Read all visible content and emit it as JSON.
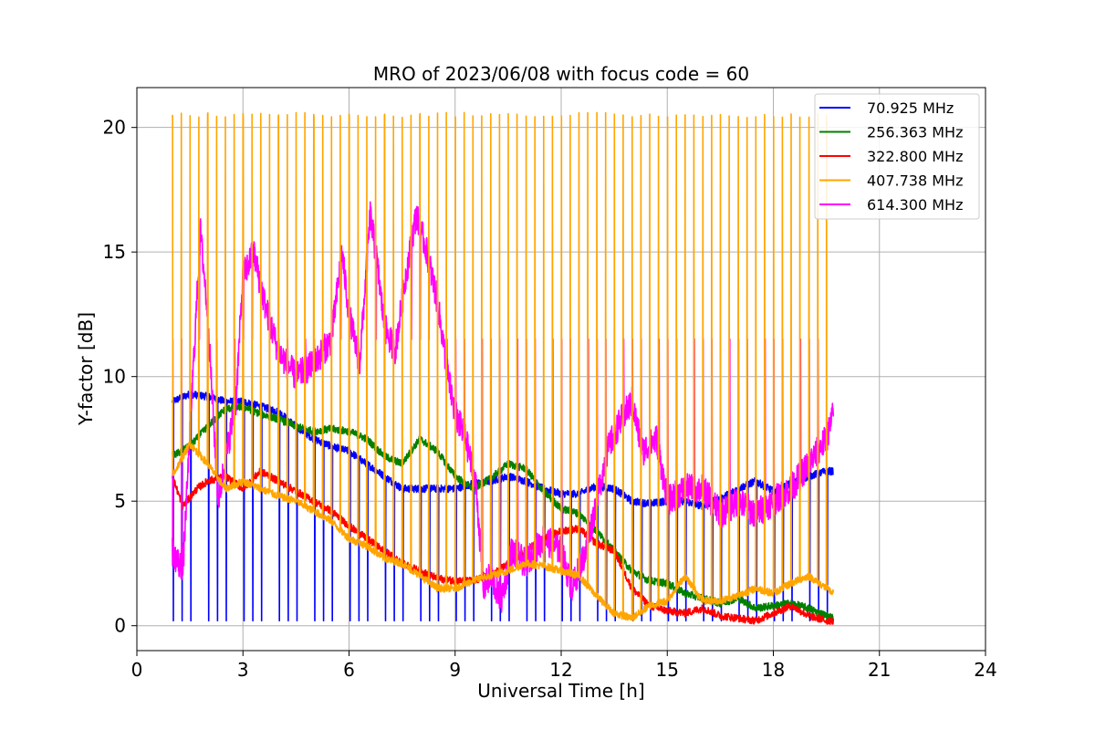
{
  "chart_data": {
    "type": "line",
    "title": "MRO of 2023/06/08 with focus code = 60",
    "xlabel": "Universal Time [h]",
    "ylabel": "Y-factor [dB]",
    "xlim": [
      0,
      24
    ],
    "ylim": [
      -1,
      21.6
    ],
    "x_ticks": [
      "0",
      "3",
      "6",
      "9",
      "12",
      "15",
      "18",
      "21",
      "24"
    ],
    "y_ticks": [
      "0",
      "5",
      "10",
      "15",
      "20"
    ],
    "grid": true,
    "legend_position": "top-right",
    "spike_period_h": 0.25,
    "series": [
      {
        "name": " 70.925 MHz",
        "color": "#0000ff",
        "points": [
          [
            1.0,
            9.0
          ],
          [
            1.5,
            9.3
          ],
          [
            2.0,
            9.2
          ],
          [
            2.5,
            9.0
          ],
          [
            3.0,
            9.0
          ],
          [
            3.5,
            8.8
          ],
          [
            4.0,
            8.6
          ],
          [
            4.5,
            8.0
          ],
          [
            5.0,
            7.5
          ],
          [
            5.5,
            7.2
          ],
          [
            6.0,
            7.0
          ],
          [
            6.5,
            6.5
          ],
          [
            7.0,
            6.0
          ],
          [
            7.5,
            5.5
          ],
          [
            8.0,
            5.5
          ],
          [
            8.5,
            5.5
          ],
          [
            9.0,
            5.5
          ],
          [
            9.5,
            5.7
          ],
          [
            10.0,
            5.8
          ],
          [
            10.5,
            6.0
          ],
          [
            11.0,
            5.8
          ],
          [
            11.5,
            5.5
          ],
          [
            12.0,
            5.3
          ],
          [
            12.5,
            5.3
          ],
          [
            13.0,
            5.6
          ],
          [
            13.5,
            5.5
          ],
          [
            14.0,
            5.0
          ],
          [
            14.5,
            4.9
          ],
          [
            15.0,
            5.0
          ],
          [
            15.5,
            5.0
          ],
          [
            16.0,
            4.8
          ],
          [
            16.5,
            5.1
          ],
          [
            17.0,
            5.5
          ],
          [
            17.5,
            5.8
          ],
          [
            18.0,
            5.4
          ],
          [
            18.5,
            5.7
          ],
          [
            19.0,
            6.0
          ],
          [
            19.5,
            6.2
          ],
          [
            19.7,
            6.2
          ]
        ],
        "spike_low": [
          1.0,
          0.2,
          19.7,
          0.1
        ],
        "spike_high_to_baseline": true
      },
      {
        "name": "256.363 MHz",
        "color": "#008000",
        "points": [
          [
            1.0,
            6.8
          ],
          [
            1.5,
            7.2
          ],
          [
            2.0,
            8.0
          ],
          [
            2.5,
            8.7
          ],
          [
            3.0,
            8.8
          ],
          [
            3.5,
            8.5
          ],
          [
            4.0,
            8.3
          ],
          [
            4.5,
            8.0
          ],
          [
            5.0,
            7.8
          ],
          [
            5.5,
            7.9
          ],
          [
            6.0,
            7.8
          ],
          [
            6.5,
            7.5
          ],
          [
            7.0,
            6.8
          ],
          [
            7.5,
            6.5
          ],
          [
            8.0,
            7.5
          ],
          [
            8.5,
            7.0
          ],
          [
            9.0,
            6.0
          ],
          [
            9.5,
            5.5
          ],
          [
            10.0,
            5.9
          ],
          [
            10.5,
            6.5
          ],
          [
            11.0,
            6.3
          ],
          [
            11.5,
            5.4
          ],
          [
            12.0,
            4.7
          ],
          [
            12.5,
            4.5
          ],
          [
            13.0,
            3.8
          ],
          [
            13.5,
            3.0
          ],
          [
            14.0,
            2.2
          ],
          [
            14.5,
            1.8
          ],
          [
            15.0,
            1.7
          ],
          [
            15.5,
            1.3
          ],
          [
            16.0,
            1.1
          ],
          [
            16.5,
            0.9
          ],
          [
            17.0,
            1.1
          ],
          [
            17.5,
            0.7
          ],
          [
            18.0,
            0.8
          ],
          [
            18.5,
            0.9
          ],
          [
            19.0,
            0.7
          ],
          [
            19.5,
            0.4
          ],
          [
            19.7,
            0.3
          ]
        ]
      },
      {
        "name": "322.800 MHz",
        "color": "#ff0000",
        "points": [
          [
            1.0,
            6.0
          ],
          [
            1.3,
            4.8
          ],
          [
            1.7,
            5.5
          ],
          [
            2.0,
            5.8
          ],
          [
            2.5,
            6.0
          ],
          [
            3.0,
            5.5
          ],
          [
            3.5,
            6.2
          ],
          [
            4.0,
            5.8
          ],
          [
            4.5,
            5.4
          ],
          [
            5.0,
            5.0
          ],
          [
            5.5,
            4.6
          ],
          [
            6.0,
            4.0
          ],
          [
            6.5,
            3.5
          ],
          [
            7.0,
            3.0
          ],
          [
            7.5,
            2.5
          ],
          [
            8.0,
            2.2
          ],
          [
            8.5,
            1.9
          ],
          [
            9.0,
            1.8
          ],
          [
            9.5,
            1.8
          ],
          [
            10.0,
            2.0
          ],
          [
            10.5,
            2.5
          ],
          [
            11.0,
            3.0
          ],
          [
            11.5,
            3.5
          ],
          [
            12.0,
            3.8
          ],
          [
            12.5,
            3.9
          ],
          [
            13.0,
            3.3
          ],
          [
            13.5,
            3.0
          ],
          [
            14.0,
            1.5
          ],
          [
            14.5,
            0.8
          ],
          [
            15.0,
            0.6
          ],
          [
            15.5,
            0.5
          ],
          [
            16.0,
            0.7
          ],
          [
            16.5,
            0.4
          ],
          [
            17.0,
            0.3
          ],
          [
            17.5,
            0.2
          ],
          [
            18.0,
            0.5
          ],
          [
            18.5,
            0.8
          ],
          [
            19.0,
            0.4
          ],
          [
            19.5,
            0.2
          ],
          [
            19.7,
            0.2
          ]
        ]
      },
      {
        "name": "407.738 MHz",
        "color": "#ffa500",
        "points": [
          [
            1.0,
            6.0
          ],
          [
            1.5,
            7.3
          ],
          [
            2.0,
            6.5
          ],
          [
            2.5,
            5.5
          ],
          [
            3.0,
            5.8
          ],
          [
            3.5,
            5.5
          ],
          [
            4.0,
            5.2
          ],
          [
            4.5,
            5.0
          ],
          [
            5.0,
            4.6
          ],
          [
            5.5,
            4.2
          ],
          [
            6.0,
            3.5
          ],
          [
            6.5,
            3.2
          ],
          [
            7.0,
            2.7
          ],
          [
            7.5,
            2.5
          ],
          [
            8.0,
            2.0
          ],
          [
            8.5,
            1.5
          ],
          [
            9.0,
            1.5
          ],
          [
            9.5,
            1.8
          ],
          [
            10.0,
            2.0
          ],
          [
            10.5,
            2.2
          ],
          [
            11.0,
            2.5
          ],
          [
            11.5,
            2.4
          ],
          [
            12.0,
            2.2
          ],
          [
            12.5,
            2.0
          ],
          [
            13.0,
            1.2
          ],
          [
            13.5,
            0.5
          ],
          [
            14.0,
            0.3
          ],
          [
            14.5,
            0.8
          ],
          [
            15.0,
            1.0
          ],
          [
            15.5,
            2.0
          ],
          [
            16.0,
            1.0
          ],
          [
            16.5,
            1.0
          ],
          [
            17.0,
            1.2
          ],
          [
            17.5,
            1.5
          ],
          [
            18.0,
            1.3
          ],
          [
            18.5,
            1.7
          ],
          [
            19.0,
            2.0
          ],
          [
            19.5,
            1.5
          ],
          [
            19.7,
            1.3
          ]
        ],
        "spike_high": [
          [
            1.0,
            20.6
          ],
          [
            2.0,
            20.6
          ],
          [
            19.7,
            20.5
          ]
        ]
      },
      {
        "name": "614.300 MHz",
        "color": "#ff00ff",
        "points": [
          [
            1.0,
            3.0
          ],
          [
            1.3,
            2.2
          ],
          [
            1.6,
            10.5
          ],
          [
            1.8,
            15.8
          ],
          [
            2.0,
            12.5
          ],
          [
            2.3,
            5.0
          ],
          [
            2.8,
            9.0
          ],
          [
            3.0,
            14.0
          ],
          [
            3.3,
            15.0
          ],
          [
            3.6,
            13.0
          ],
          [
            4.0,
            11.0
          ],
          [
            4.5,
            10.0
          ],
          [
            5.0,
            10.5
          ],
          [
            5.5,
            11.5
          ],
          [
            5.8,
            15.0
          ],
          [
            6.0,
            12.5
          ],
          [
            6.3,
            10.5
          ],
          [
            6.6,
            16.5
          ],
          [
            6.8,
            14.5
          ],
          [
            7.0,
            12.0
          ],
          [
            7.3,
            11.0
          ],
          [
            7.6,
            14.0
          ],
          [
            7.9,
            16.5
          ],
          [
            8.2,
            15.0
          ],
          [
            8.5,
            13.0
          ],
          [
            8.8,
            10.0
          ],
          [
            9.0,
            8.5
          ],
          [
            9.3,
            7.5
          ],
          [
            9.6,
            5.5
          ],
          [
            9.8,
            1.5
          ],
          [
            10.0,
            2.0
          ],
          [
            10.3,
            1.0
          ],
          [
            10.6,
            3.0
          ],
          [
            11.0,
            2.5
          ],
          [
            11.5,
            3.5
          ],
          [
            12.0,
            3.0
          ],
          [
            12.3,
            1.5
          ],
          [
            12.7,
            3.0
          ],
          [
            13.0,
            5.0
          ],
          [
            13.3,
            7.0
          ],
          [
            13.6,
            8.0
          ],
          [
            14.0,
            9.0
          ],
          [
            14.3,
            7.0
          ],
          [
            14.7,
            7.5
          ],
          [
            15.0,
            5.0
          ],
          [
            15.5,
            5.5
          ],
          [
            16.0,
            5.5
          ],
          [
            16.5,
            4.5
          ],
          [
            17.0,
            5.0
          ],
          [
            17.5,
            4.5
          ],
          [
            18.0,
            5.0
          ],
          [
            18.5,
            5.5
          ],
          [
            19.0,
            6.5
          ],
          [
            19.5,
            7.5
          ],
          [
            19.7,
            8.5
          ]
        ],
        "spike_high_level": 11.5
      }
    ]
  }
}
